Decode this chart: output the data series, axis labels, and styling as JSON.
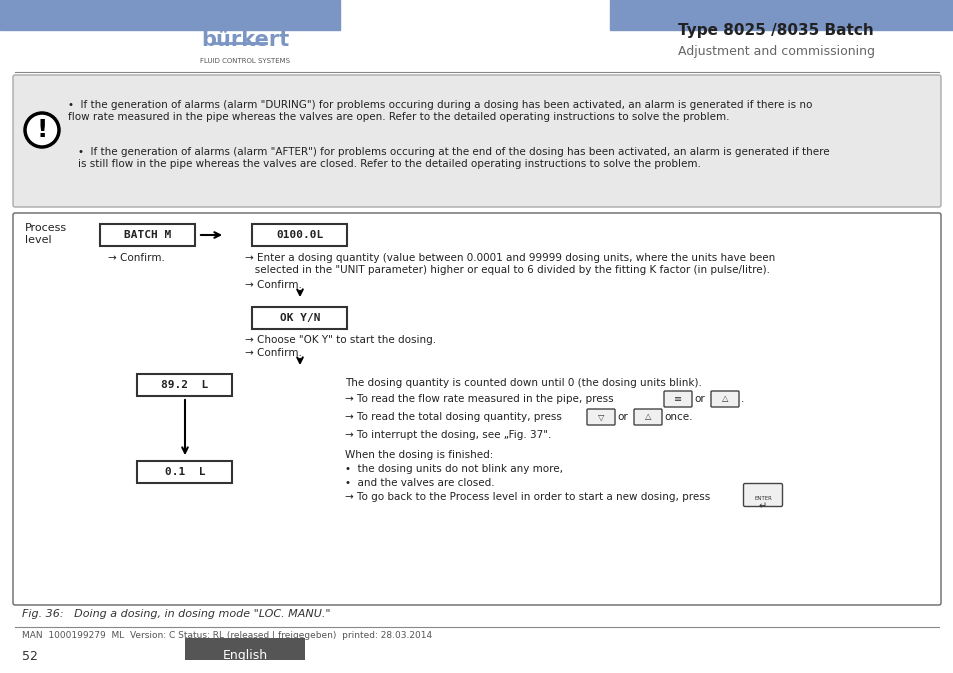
{
  "page_width": 9.54,
  "page_height": 6.73,
  "header_bar_color": "#7B96C4",
  "logo_text": "bürkert",
  "logo_sub": "FLUID CONTROL SYSTEMS",
  "title_text": "Type 8025 /8035 Batch",
  "subtitle_text": "Adjustment and commissioning",
  "warning_box_bg": "#E8E8E8",
  "warning_box_text1": "If the generation of alarms (alarm \"DURING\") for problems occuring during a dosing has been activated, an alarm is generated if there is no\nflow rate measured in the pipe whereas the valves are open. Refer to the detailed operating instructions to solve the problem.",
  "warning_box_text2": "If the generation of alarms (alarm \"AFTER\") for problems occuring at the end of the dosing has been activated, an alarm is generated if there\nis still flow in the pipe whereas the valves are closed. Refer to the detailed operating instructions to solve the problem.",
  "batch_box": "BATCH M",
  "dose_box": "0100.0L",
  "ok_box": "OK Y/N",
  "count_box": "89.2  L",
  "final_box": "0.1  L",
  "confirm1": "→ Confirm.",
  "confirm2": "→ Confirm.",
  "confirm3": "→ Confirm.",
  "enter_text_line1": "→ Enter a dosing quantity (value between 0.0001 and 99999 dosing units, where the units have been",
  "enter_text_line2": "   selected in the \"UNIT parameter) higher or equal to 6 divided by the fitting K factor (in pulse/litre).",
  "choose_text": "→ Choose \"OK Y\" to start the dosing.",
  "count_text": "The dosing quantity is counted down until 0 (the dosing units blink).",
  "flow_text_pre": "→ To read the flow rate measured in the pipe, press",
  "flow_text_or": "or",
  "flow_text_end": ".",
  "total_text_pre": "→ To read the total dosing quantity, press",
  "total_text_or": "or",
  "total_text_end": "once.",
  "interrupt_text": "→ To interrupt the dosing, see „Fig. 37\".",
  "finished_header": "When the dosing is finished:",
  "finished1": "•  the dosing units do not blink any more,",
  "finished2": "•  and the valves are closed.",
  "go_back_text": "→ To go back to the Process level in order to start a new dosing, press",
  "fig_caption": "Fig. 36:   Doing a dosing, in dosing mode \"LOC. MANU.\"",
  "footer_text": "MAN  1000199279  ML  Version: C Status: RL (released | freigegeben)  printed: 28.03.2014",
  "page_num": "52",
  "english_btn_color": "#555555",
  "divider_color": "#888888",
  "box_border_color": "#333333",
  "lcd_bg": "#FFFFFF",
  "lcd_text_color": "#222222"
}
